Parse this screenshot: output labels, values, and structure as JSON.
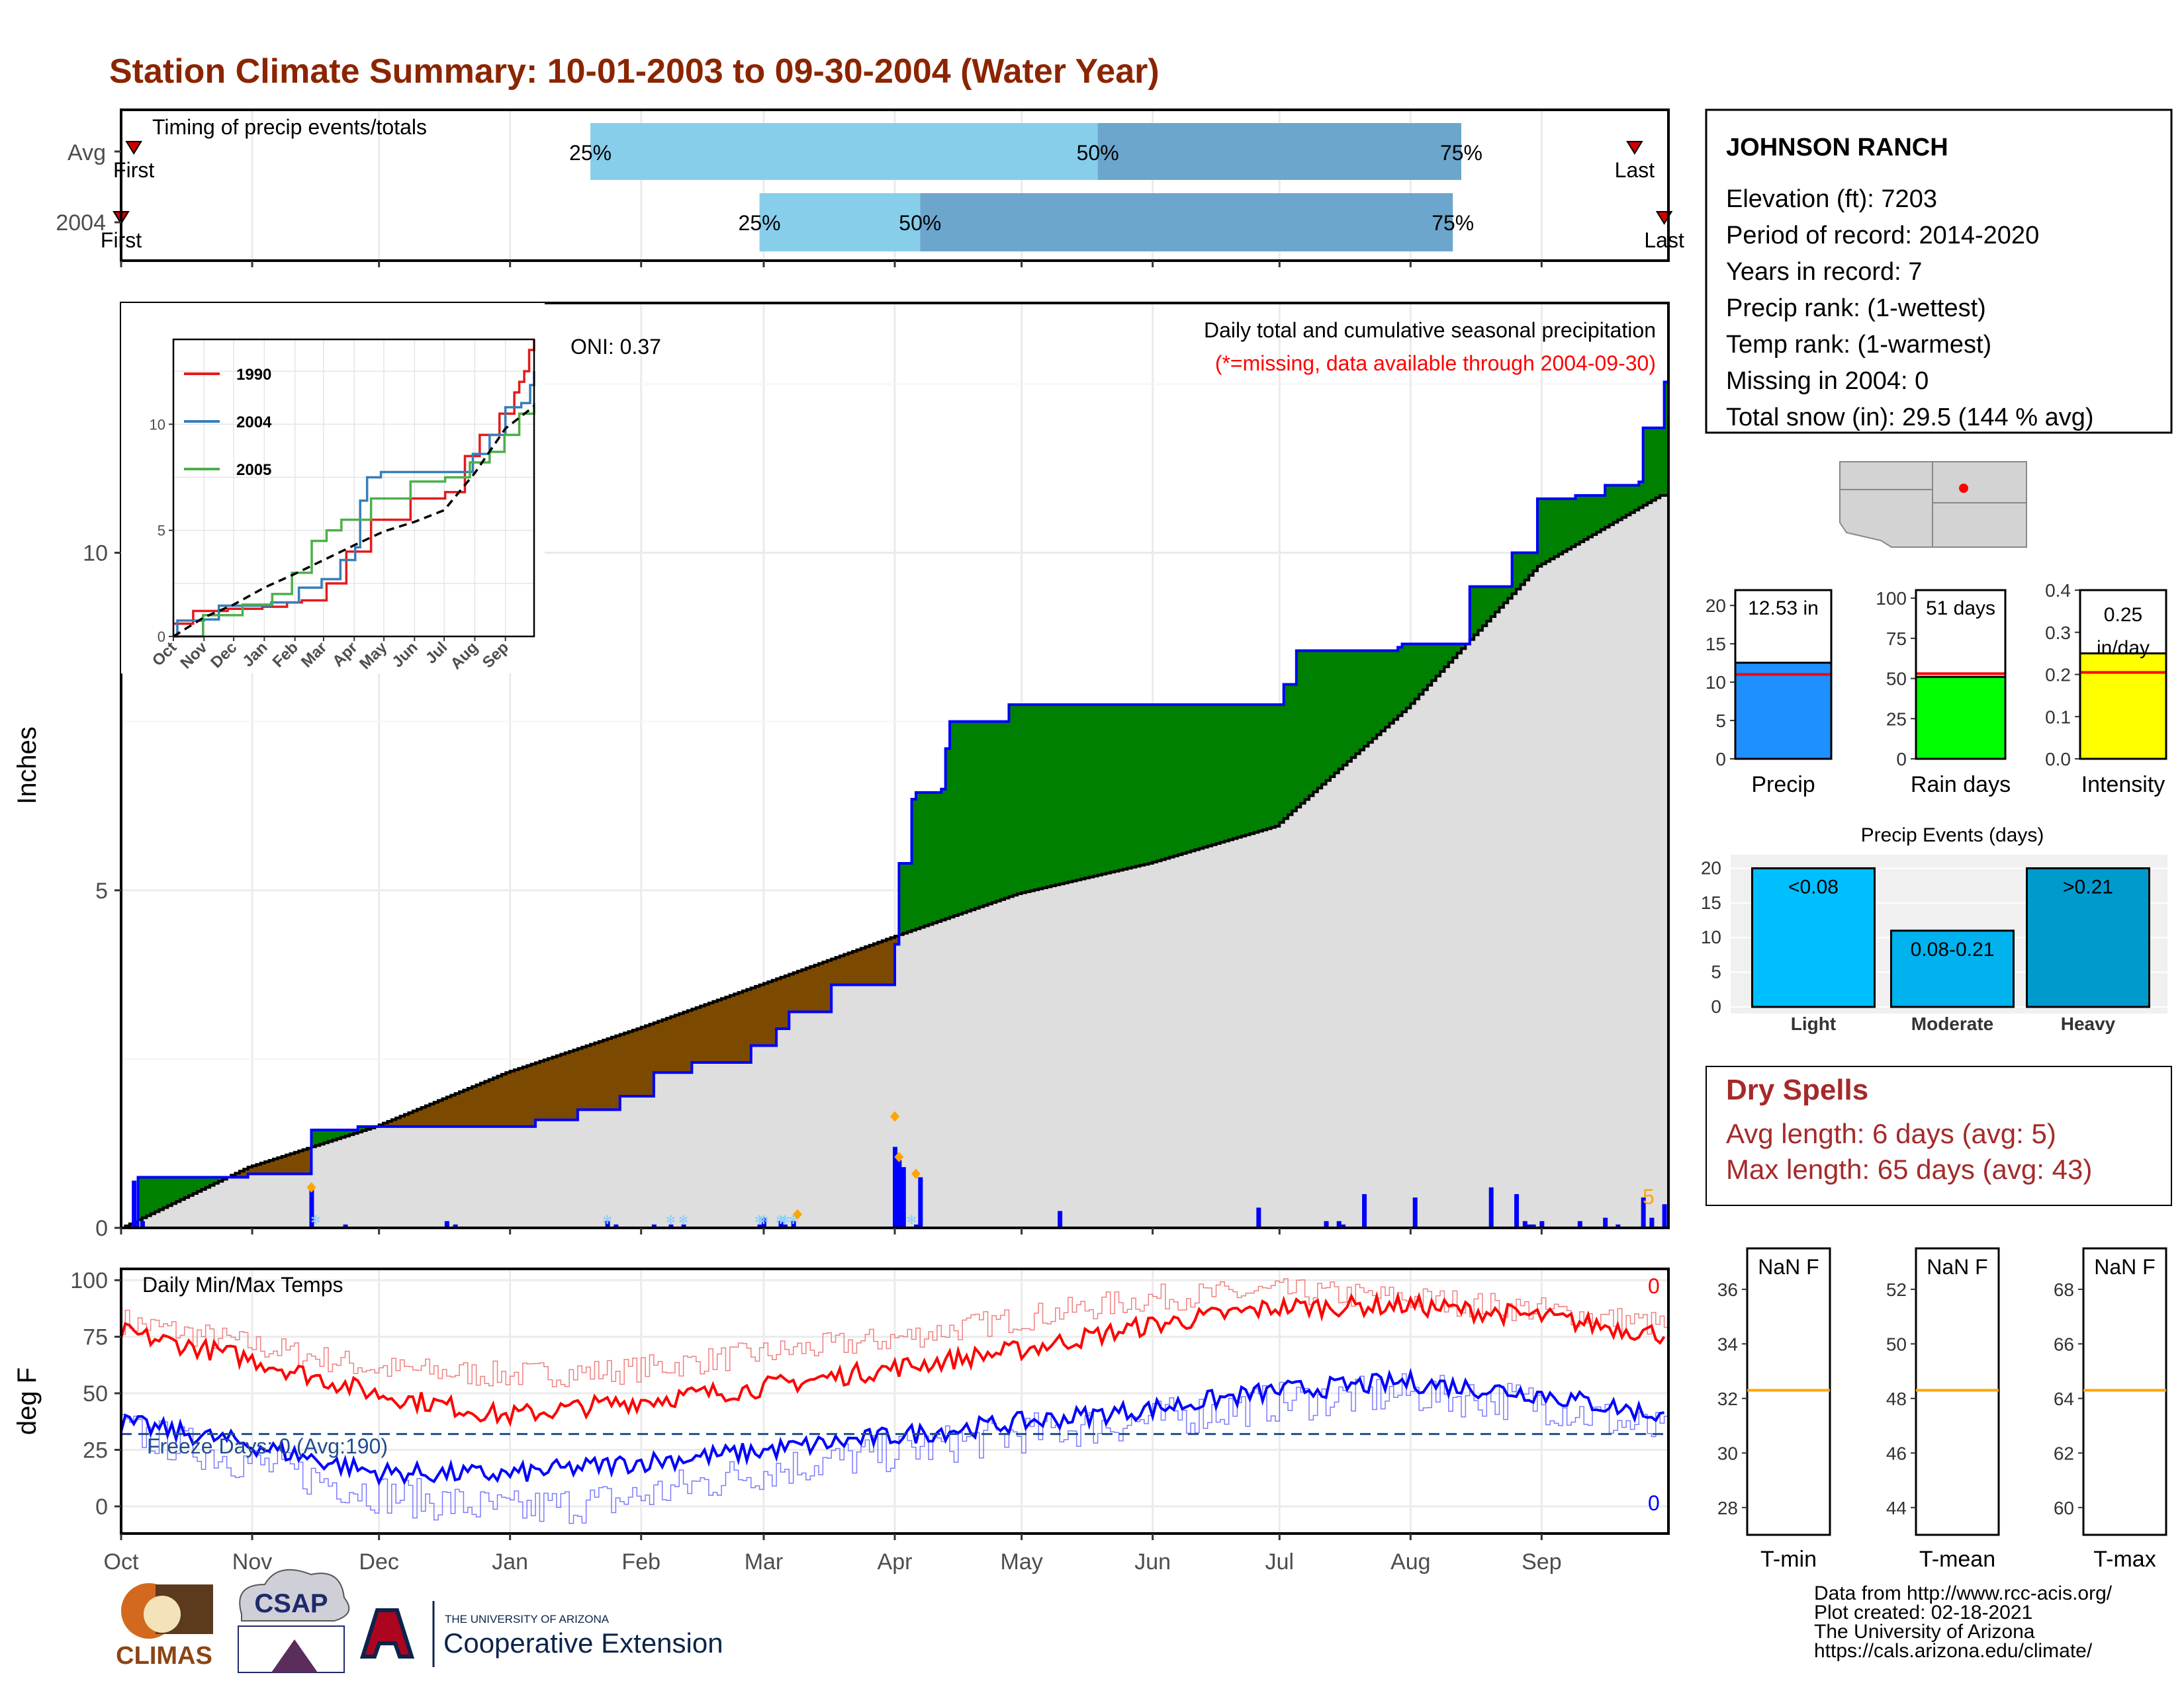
{
  "title": "Station Climate Summary: 10-01-2003 to 09-30-2004 (Water Year)",
  "colors": {
    "title": "#8B2500",
    "wet": "#008000",
    "dry": "#7B4A00",
    "normal_fill": "#DEDEDE",
    "precip_bar": "#0000FF",
    "median_band": "#6CA6CD",
    "outer_band": "#87CEEB",
    "tmax": "#FF0000",
    "tmin": "#0000FF",
    "freeze": "#1F4E8C",
    "dry_spell": "#A52A2A",
    "gauge_precip": "#1E90FF",
    "gauge_rain": "#00FF00",
    "gauge_intensity": "#FFFF00",
    "event_light": "#00BFFF",
    "event_moderate": "#00B2EE",
    "event_heavy": "#009ACD",
    "marker": "#FFA500"
  },
  "months": [
    "Oct",
    "Nov",
    "Dec",
    "Jan",
    "Feb",
    "Mar",
    "Apr",
    "May",
    "Jun",
    "Jul",
    "Aug",
    "Sep"
  ],
  "month_days": [
    31,
    30,
    31,
    31,
    29,
    31,
    30,
    31,
    30,
    31,
    31,
    30
  ],
  "timing": {
    "label": "Timing of precip events/totals",
    "rows": [
      {
        "name": "Avg",
        "first": "First",
        "last": "Last",
        "first_day": 4,
        "last_day": 359,
        "p25": 112,
        "p50": 232,
        "p75": 318,
        "p25_label": "25%",
        "p50_label": "50%",
        "p75_label": "75%"
      },
      {
        "name": "2004",
        "first": "First",
        "last": "Last",
        "first_day": 1,
        "last_day": 366,
        "p25": 152,
        "p50": 190,
        "p75": 316,
        "p25_label": "25%",
        "p50_label": "50%",
        "p75_label": "75%"
      }
    ]
  },
  "main": {
    "ylabel": "Inches",
    "yticks": [
      0,
      5,
      10
    ],
    "ylim": [
      0,
      13.7
    ],
    "label1": "Daily total and cumulative seasonal precipitation",
    "label2": "(*=missing, data available through 2004-09-30)",
    "oni": "ONI: 0.37",
    "corner_number": "5"
  },
  "chart_data": {
    "type": "area",
    "title": "Daily total and cumulative seasonal precipitation",
    "ylabel": "Inches",
    "ylim": [
      0,
      13.7
    ],
    "normal_cumulative": {
      "day": [
        1,
        31,
        61,
        92,
        123,
        152,
        183,
        213,
        244,
        274,
        305,
        336,
        365
      ],
      "inches": [
        0.0,
        0.9,
        1.5,
        2.3,
        2.95,
        3.6,
        4.3,
        4.95,
        5.4,
        5.95,
        7.7,
        9.8,
        10.85
      ]
    },
    "cumulative_2004": {
      "day": [
        1,
        4,
        5,
        30,
        31,
        45,
        46,
        57,
        68,
        98,
        99,
        107,
        109,
        118,
        119,
        125,
        127,
        133,
        136,
        149,
        150,
        154,
        156,
        157,
        159,
        169,
        183,
        184,
        185,
        188,
        189,
        195,
        196,
        197,
        210,
        211,
        240,
        241,
        260,
        267,
        275,
        276,
        279,
        303,
        304,
        320,
        330,
        336,
        345,
        352,
        360,
        361,
        366
      ],
      "inches": [
        0.0,
        0.0,
        0.75,
        0.75,
        0.8,
        0.8,
        1.45,
        1.5,
        1.5,
        1.5,
        1.6,
        1.6,
        1.75,
        1.75,
        1.95,
        1.95,
        2.3,
        2.3,
        2.45,
        2.45,
        2.7,
        2.7,
        2.95,
        2.95,
        3.2,
        3.6,
        3.6,
        4.2,
        5.4,
        6.35,
        6.45,
        6.5,
        7.1,
        7.5,
        7.5,
        7.75,
        7.75,
        7.75,
        7.75,
        7.75,
        7.75,
        8.05,
        8.55,
        8.6,
        8.65,
        9.5,
        10.0,
        10.8,
        10.85,
        11.0,
        11.05,
        11.85,
        12.53
      ]
    },
    "daily_precip": {
      "day": [
        4,
        6,
        46,
        54,
        78,
        80,
        116,
        118,
        127,
        131,
        134,
        152,
        153,
        157,
        158,
        160,
        184,
        185,
        186,
        189,
        190,
        223,
        270,
        286,
        289,
        290,
        295,
        307,
        325,
        331,
        333,
        334,
        335,
        337,
        346,
        352,
        355,
        361,
        363,
        366
      ],
      "inches": [
        0.7,
        0.1,
        0.6,
        0.05,
        0.1,
        0.05,
        0.1,
        0.05,
        0.05,
        0.05,
        0.05,
        0.05,
        0.15,
        0.1,
        0.05,
        0.1,
        1.2,
        1.0,
        0.9,
        0.05,
        0.75,
        0.25,
        0.3,
        0.1,
        0.1,
        0.05,
        0.5,
        0.45,
        0.6,
        0.5,
        0.1,
        0.05,
        0.05,
        0.1,
        0.1,
        0.15,
        0.05,
        0.45,
        0.15,
        0.35
      ]
    },
    "markers": {
      "day": [
        46,
        161,
        184,
        185,
        189
      ],
      "inches": [
        0.6,
        0.2,
        1.65,
        1.05,
        0.8
      ]
    },
    "series": [
      {
        "name": "Avg"
      },
      {
        "name": "2004"
      }
    ]
  },
  "inset": {
    "legend": [
      "1990",
      "2004",
      "2005"
    ],
    "colors": [
      "#E41A1C",
      "#377EB8",
      "#4DAF4A"
    ],
    "yticks": [
      0,
      5,
      10
    ],
    "ylim": [
      0,
      14
    ],
    "xticks": [
      "Oct",
      "Nov",
      "Dec",
      "Jan",
      "Feb",
      "Mar",
      "Apr",
      "May",
      "Jun",
      "Jul",
      "Aug",
      "Sep"
    ],
    "series": [
      {
        "name": "1990",
        "x": [
          0,
          20,
          55,
          90,
          115,
          130,
          155,
          175,
          200,
          240,
          275,
          295,
          310,
          330,
          345,
          350,
          355,
          360,
          365
        ],
        "y": [
          0.6,
          1.2,
          1.3,
          1.4,
          1.6,
          1.7,
          2.5,
          4.0,
          5.5,
          6.5,
          6.8,
          8.5,
          9.5,
          10.5,
          11.5,
          12.0,
          12.5,
          13.5,
          14.0
        ]
      },
      {
        "name": "2004",
        "x": [
          0,
          4,
          31,
          46,
          99,
          127,
          150,
          169,
          184,
          189,
          196,
          210,
          276,
          303,
          320,
          336,
          352,
          361,
          365
        ],
        "y": [
          0.0,
          0.75,
          0.8,
          1.45,
          1.6,
          2.3,
          2.7,
          3.6,
          4.2,
          6.4,
          7.5,
          7.75,
          7.75,
          8.6,
          9.5,
          10.8,
          11.0,
          11.85,
          12.5
        ]
      },
      {
        "name": "2005",
        "x": [
          0,
          30,
          70,
          100,
          120,
          140,
          155,
          170,
          200,
          240,
          275,
          300,
          320,
          335,
          350,
          365
        ],
        "y": [
          0.0,
          1.0,
          1.5,
          2.0,
          3.0,
          4.5,
          5.0,
          5.5,
          6.5,
          7.3,
          7.5,
          8.2,
          8.7,
          9.5,
          10.5,
          11.0
        ]
      },
      {
        "name": "Avg",
        "x": [
          0,
          31,
          61,
          92,
          123,
          152,
          183,
          213,
          244,
          274,
          305,
          336,
          365
        ],
        "y": [
          0.0,
          0.9,
          1.5,
          2.3,
          2.95,
          3.6,
          4.3,
          4.95,
          5.4,
          5.95,
          7.7,
          9.8,
          10.85
        ]
      }
    ]
  },
  "temps": {
    "ylabel": "deg F",
    "label": "Daily Min/Max Temps",
    "freeze_label": "Freeze Days: 0 (Avg:190)",
    "top_count": "0",
    "bottom_count": "0",
    "yticks": [
      0,
      25,
      50,
      75,
      100
    ],
    "ylim": [
      -12,
      105
    ],
    "freeze_line": 32,
    "tmax_knots": {
      "day": [
        1,
        30,
        61,
        92,
        120,
        150,
        183,
        213,
        244,
        274,
        305,
        336,
        366
      ],
      "value": [
        77,
        66,
        50,
        40,
        46,
        52,
        61,
        69,
        80,
        88,
        89,
        84,
        76
      ]
    },
    "tmin_knots": {
      "day": [
        1,
        30,
        61,
        92,
        120,
        150,
        183,
        213,
        244,
        274,
        305,
        336,
        366
      ],
      "value": [
        37,
        28,
        15,
        14,
        19,
        24,
        31,
        37,
        43,
        51,
        55,
        50,
        40
      ]
    },
    "tmax_avg_knots": {
      "day": [
        1,
        30,
        61,
        92,
        120,
        150,
        183,
        213,
        244,
        274,
        305,
        336,
        366
      ],
      "value": [
        82,
        72,
        61,
        58,
        60,
        67,
        74,
        83,
        92,
        95,
        92,
        87,
        80
      ]
    },
    "tmin_avg_knots": {
      "day": [
        1,
        30,
        61,
        92,
        120,
        150,
        183,
        213,
        244,
        274,
        305,
        336,
        366
      ],
      "value": [
        34,
        20,
        6,
        -2,
        3,
        15,
        24,
        32,
        38,
        46,
        50,
        46,
        32
      ]
    }
  },
  "station": {
    "name": "JOHNSON RANCH",
    "lines": [
      "Elevation (ft): 7203",
      "Period of record: 2014-2020",
      "Years in record: 7",
      "Precip rank:  (1-wettest)",
      "Temp rank:  (1-warmest)",
      "Missing in 2004: 0",
      "Total snow (in): 29.5 (144 % avg)"
    ]
  },
  "gauges": [
    {
      "name": "Precip",
      "value": 12.53,
      "avg": 11.0,
      "max": 22,
      "ticks": [
        0,
        5,
        10,
        15,
        20
      ],
      "label": "12.53 in",
      "color": "#1E90FF"
    },
    {
      "name": "Rain days",
      "value": 51,
      "avg": 53,
      "max": 105,
      "ticks": [
        0,
        25,
        50,
        75,
        100
      ],
      "label": "51 days",
      "color": "#00FF00"
    },
    {
      "name": "Intensity",
      "value": 0.25,
      "avg": 0.205,
      "max": 0.4,
      "ticks": [
        "0.0",
        "0.1",
        "0.2",
        "0.3",
        "0.4"
      ],
      "label": "0.25 in/day",
      "color": "#FFFF00"
    }
  ],
  "events": {
    "title": "Precip Events (days)",
    "categories": [
      "Light",
      "Moderate",
      "Heavy"
    ],
    "labels": [
      "<0.08",
      "0.08-0.21",
      ">0.21"
    ],
    "values": [
      20,
      11,
      20
    ],
    "yticks": [
      0,
      5,
      10,
      15,
      20
    ],
    "colors": [
      "#00BFFF",
      "#00B2EE",
      "#009ACD"
    ]
  },
  "dry_spells": {
    "title": "Dry Spells",
    "avg": "Avg length: 6 days (avg: 5)",
    "max": "Max length: 65 days (avg: 43)"
  },
  "temp_gauges": [
    {
      "name": "T-min",
      "label": "NaN F",
      "ticks": [
        28,
        30,
        32,
        34,
        36
      ],
      "ylim": [
        27,
        37.5
      ],
      "avg": 32.3
    },
    {
      "name": "T-mean",
      "label": "NaN F",
      "ticks": [
        44,
        46,
        48,
        50,
        52
      ],
      "ylim": [
        43,
        53.5
      ],
      "avg": 48.3
    },
    {
      "name": "T-max",
      "label": "NaN F",
      "ticks": [
        60,
        62,
        64,
        66,
        68
      ],
      "ylim": [
        59,
        69.5
      ],
      "avg": 64.3
    }
  ],
  "footer": {
    "lines": [
      "Data from http://www.rcc-acis.org/",
      "Plot created: 02-18-2021",
      "The University of Arizona",
      "https://cals.arizona.edu/climate/"
    ],
    "climas": "CLIMAS",
    "csap": "CSAP",
    "ua_small": "THE UNIVERSITY OF ARIZONA",
    "ua_big": "Cooperative Extension"
  }
}
